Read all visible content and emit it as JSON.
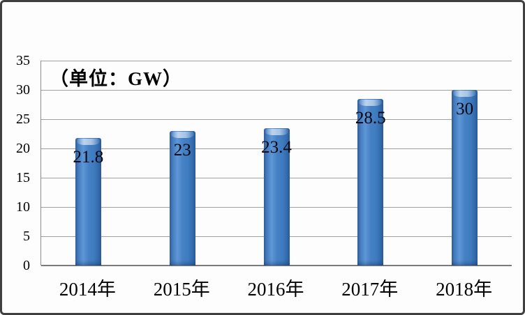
{
  "annotation": {
    "unit_label": "（单位：GW）"
  },
  "chart_data": {
    "type": "bar",
    "title": "",
    "unit_annotation": "（单位：GW）",
    "categories": [
      "2014年",
      "2015年",
      "2016年",
      "2017年",
      "2018年"
    ],
    "values": [
      21.8,
      23,
      23.4,
      28.5,
      30
    ],
    "value_labels": [
      "21.8",
      "23",
      "23.4",
      "28.5",
      "30"
    ],
    "xlabel": "",
    "ylabel": "",
    "ylim": [
      0,
      35
    ],
    "yticks": [
      0,
      5,
      10,
      15,
      20,
      25,
      30,
      35
    ],
    "grid": true,
    "legend": "none",
    "colors": {
      "bar_color": "#3e7cc0",
      "bar_color_dark": "#2c5f9e",
      "bar_color_light": "#5f97d6",
      "gridline_color": "#a0a0a0",
      "axis_color": "#7a7a7a",
      "label_color": "#000000",
      "frame_border_color": "#3f3f3f"
    }
  }
}
